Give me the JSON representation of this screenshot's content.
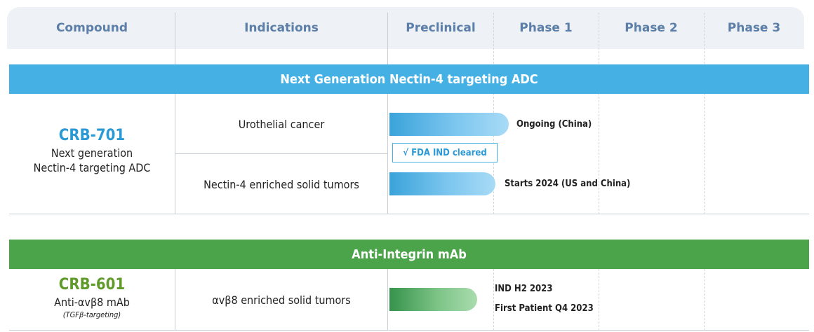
{
  "header": {
    "columns": [
      "Compound",
      "Indications",
      "Preclinical",
      "Phase 1",
      "Phase 2",
      "Phase 3"
    ]
  },
  "colors": {
    "header_text": "#5b7fa8",
    "blue_band": "#45b0e4",
    "green_band": "#4ca44a",
    "crb701": "#2a9ad6",
    "crb601": "#5f9a2a"
  },
  "sections": [
    {
      "band_title": "Next Generation Nectin-4 targeting ADC",
      "compound": {
        "name": "CRB-701",
        "desc_line1": "Next generation",
        "desc_line2": "Nectin-4 targeting ADC"
      },
      "rows": [
        {
          "indication": "Urothelial cancer",
          "note": "Ongoing (China)"
        },
        {
          "indication": "Nectin-4 enriched solid tumors",
          "note": "Starts 2024 (US and China)"
        }
      ],
      "badge": "√  FDA IND cleared"
    },
    {
      "band_title": "Anti-Integrin mAb",
      "compound": {
        "name": "CRB-601",
        "desc_line1": "Anti-αvβ8 mAb",
        "sub": "(TGFβ-targeting)"
      },
      "rows": [
        {
          "indication": "αvβ8 enriched solid tumors",
          "note_line1": "IND H2 2023",
          "note_line2": "First Patient Q4 2023"
        }
      ]
    }
  ],
  "chart_data": {
    "type": "table",
    "stages": [
      "Preclinical",
      "Phase 1",
      "Phase 2",
      "Phase 3"
    ],
    "rows": [
      {
        "compound": "CRB-701",
        "indication": "Urothelial cancer",
        "progress_stage": "Phase 1",
        "progress_fraction_of_stage": 0.15,
        "note": "Ongoing (China)"
      },
      {
        "compound": "CRB-701",
        "indication": "Nectin-4 enriched solid tumors",
        "progress_stage": "Preclinical",
        "progress_fraction_of_stage": 1.0,
        "note": "Starts 2024 (US and China)"
      },
      {
        "compound": "CRB-601",
        "indication": "αvβ8 enriched solid tumors",
        "progress_stage": "Preclinical",
        "progress_fraction_of_stage": 0.8,
        "note": "IND H2 2023 / First Patient Q4 2023"
      }
    ]
  }
}
